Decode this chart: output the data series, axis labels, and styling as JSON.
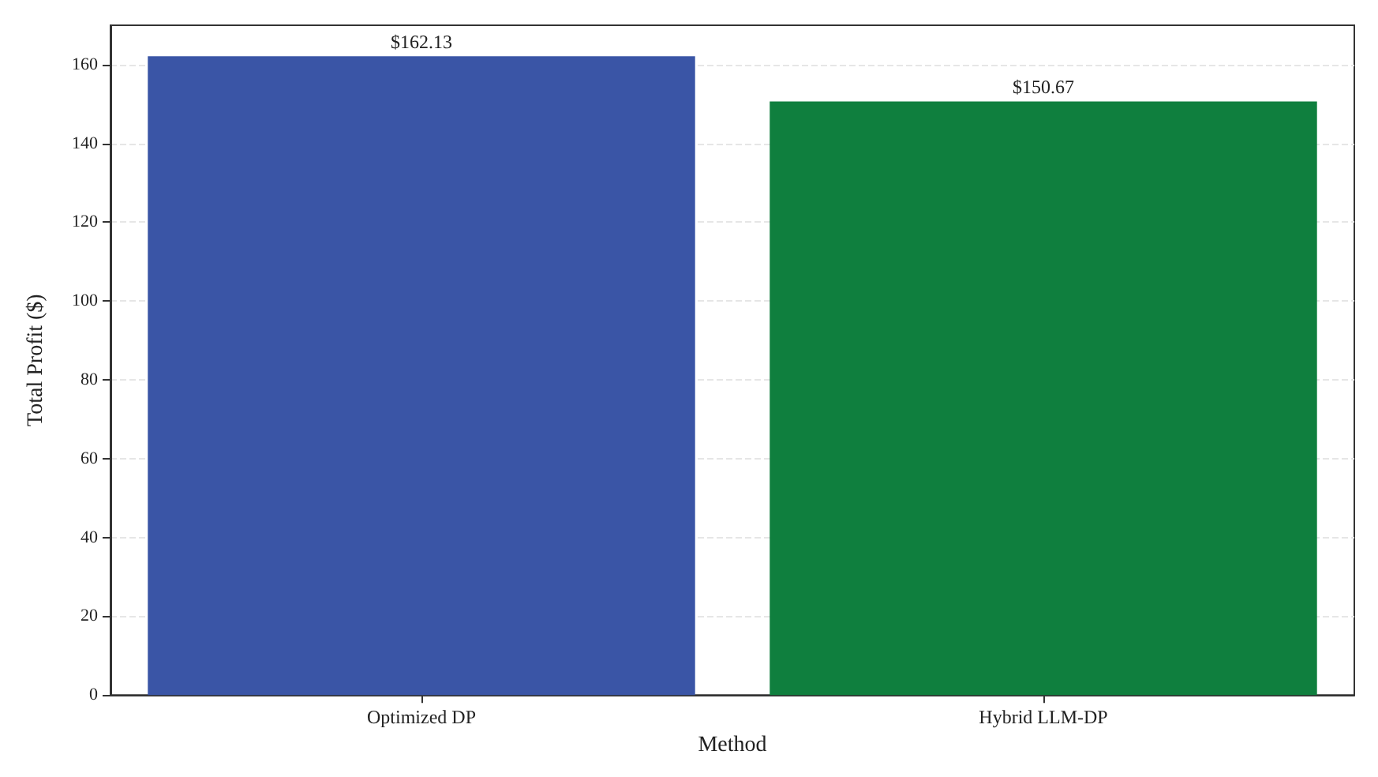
{
  "chart_data": {
    "type": "bar",
    "xlabel": "Method",
    "ylabel": "Total Profit ($)",
    "categories": [
      "Optimized DP",
      "Hybrid LLM-DP"
    ],
    "values": [
      162.13,
      150.67
    ],
    "colors": [
      "#3a55a6",
      "#0f7f3e"
    ],
    "value_labels": [
      "$162.13",
      "$150.67"
    ],
    "ylim": [
      0,
      170
    ],
    "yticks": [
      0,
      20,
      40,
      60,
      80,
      100,
      120,
      140,
      160
    ],
    "grid": "y"
  }
}
